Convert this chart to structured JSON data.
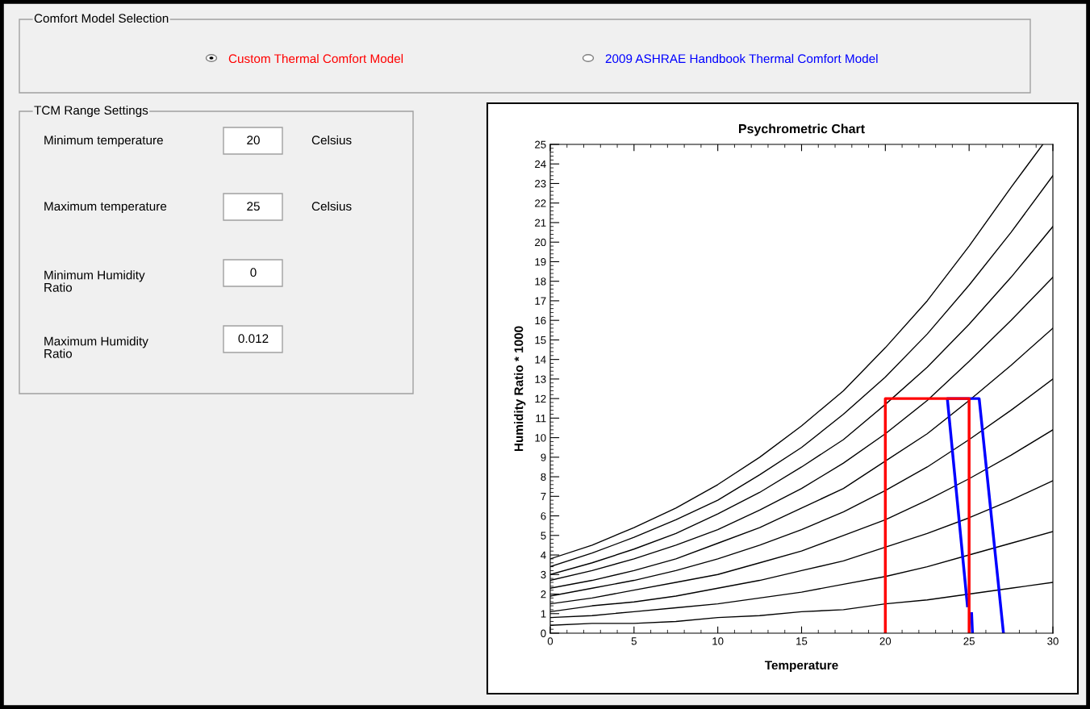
{
  "chart_data": [
    {
      "type": "other",
      "annotations": [
        "Comfort Model Selection",
        "Custom Thermal Comfort Model",
        "2009 ASHRAE Handbook Thermal Comfort Model",
        "TCM Range Settings",
        "Minimum temperature",
        "20",
        "Celsius",
        "Maximum temperature",
        "25",
        "Celsius",
        "Minimum Humidity Ratio",
        "0",
        "Maximum Humidity Ratio",
        "0.012"
      ],
      "colors": [
        "#000000",
        "#ff0000",
        "#0000ff",
        "#000000",
        "#000000",
        "#000000",
        "#000000",
        "#000000",
        "#000000",
        "#000000",
        "#000000",
        "#000000",
        "#000000",
        "#000000"
      ]
    },
    {
      "type": "line",
      "title": "Psychrometric Chart",
      "xlabel": "Temperature",
      "ylabel": "Humidity Ratio * 1000",
      "x": [
        0,
        2.5,
        5,
        7.5,
        10,
        12.5,
        15,
        17.5,
        20,
        22.5,
        25,
        27.5,
        30
      ],
      "series": [
        {
          "color": "#000000",
          "x": [
            0,
            2.5,
            5,
            7.5,
            10,
            12.5,
            15,
            17.5,
            20,
            22.5,
            25,
            27.5,
            29.4
          ],
          "values": [
            3.8,
            4.5,
            5.4,
            6.4,
            7.6,
            9.0,
            10.6,
            12.4,
            14.6,
            17.0,
            19.8,
            22.8,
            25.0
          ]
        },
        {
          "color": "#000000",
          "values": [
            3.4,
            4.1,
            4.9,
            5.8,
            6.8,
            8.1,
            9.5,
            11.2,
            13.1,
            15.3,
            17.8,
            20.5,
            23.4
          ]
        },
        {
          "color": "#000000",
          "values": [
            3.0,
            3.6,
            4.3,
            5.1,
            6.1,
            7.2,
            8.5,
            9.9,
            11.7,
            13.6,
            15.8,
            18.2,
            20.8
          ]
        },
        {
          "color": "#000000",
          "values": [
            2.7,
            3.2,
            3.8,
            4.5,
            5.3,
            6.3,
            7.4,
            8.7,
            10.2,
            11.9,
            13.9,
            16.0,
            18.2
          ]
        },
        {
          "color": "#000000",
          "values": [
            2.3,
            2.7,
            3.2,
            3.8,
            4.6,
            5.4,
            6.4,
            7.4,
            8.8,
            10.2,
            11.9,
            13.7,
            15.6
          ]
        },
        {
          "color": "#000000",
          "values": [
            1.9,
            2.3,
            2.7,
            3.2,
            3.8,
            4.5,
            5.3,
            6.2,
            7.3,
            8.5,
            9.9,
            11.4,
            13.0
          ]
        },
        {
          "color": "#000000",
          "values": [
            1.5,
            1.8,
            2.2,
            2.6,
            3.0,
            3.6,
            4.2,
            5.0,
            5.8,
            6.8,
            7.9,
            9.1,
            10.4
          ]
        },
        {
          "color": "#000000",
          "values": [
            1.1,
            1.4,
            1.6,
            1.9,
            2.3,
            2.7,
            3.2,
            3.7,
            4.4,
            5.1,
            5.9,
            6.8,
            7.8
          ]
        },
        {
          "color": "#000000",
          "values": [
            0.8,
            0.9,
            1.1,
            1.3,
            1.5,
            1.8,
            2.1,
            2.5,
            2.9,
            3.4,
            4.0,
            4.6,
            5.2
          ]
        },
        {
          "color": "#000000",
          "values": [
            0.4,
            0.5,
            0.5,
            0.6,
            0.8,
            0.9,
            1.1,
            1.2,
            1.5,
            1.7,
            2.0,
            2.3,
            2.6
          ]
        },
        {
          "color": "#0000ff",
          "x": [
            25.2,
            25.15,
            25.1,
            24.9,
            23.7,
            25.6,
            27.05
          ],
          "values": [
            0,
            1.0,
            null,
            1.4,
            12,
            12,
            0
          ]
        },
        {
          "color": "#ff0000",
          "x": [
            20,
            20,
            25,
            25
          ],
          "values": [
            0,
            12,
            12,
            0
          ]
        }
      ],
      "xlim": [
        0,
        30
      ],
      "xticks": [
        0,
        5,
        10,
        15,
        20,
        25,
        30
      ],
      "ylim": [
        0,
        25
      ],
      "yticks": [
        0,
        1,
        2,
        3,
        4,
        5,
        6,
        7,
        8,
        9,
        10,
        11,
        12,
        13,
        14,
        15,
        16,
        17,
        18,
        19,
        20,
        21,
        22,
        23,
        24,
        25
      ],
      "grid": false,
      "marker": "none",
      "line_style": "solid"
    }
  ]
}
